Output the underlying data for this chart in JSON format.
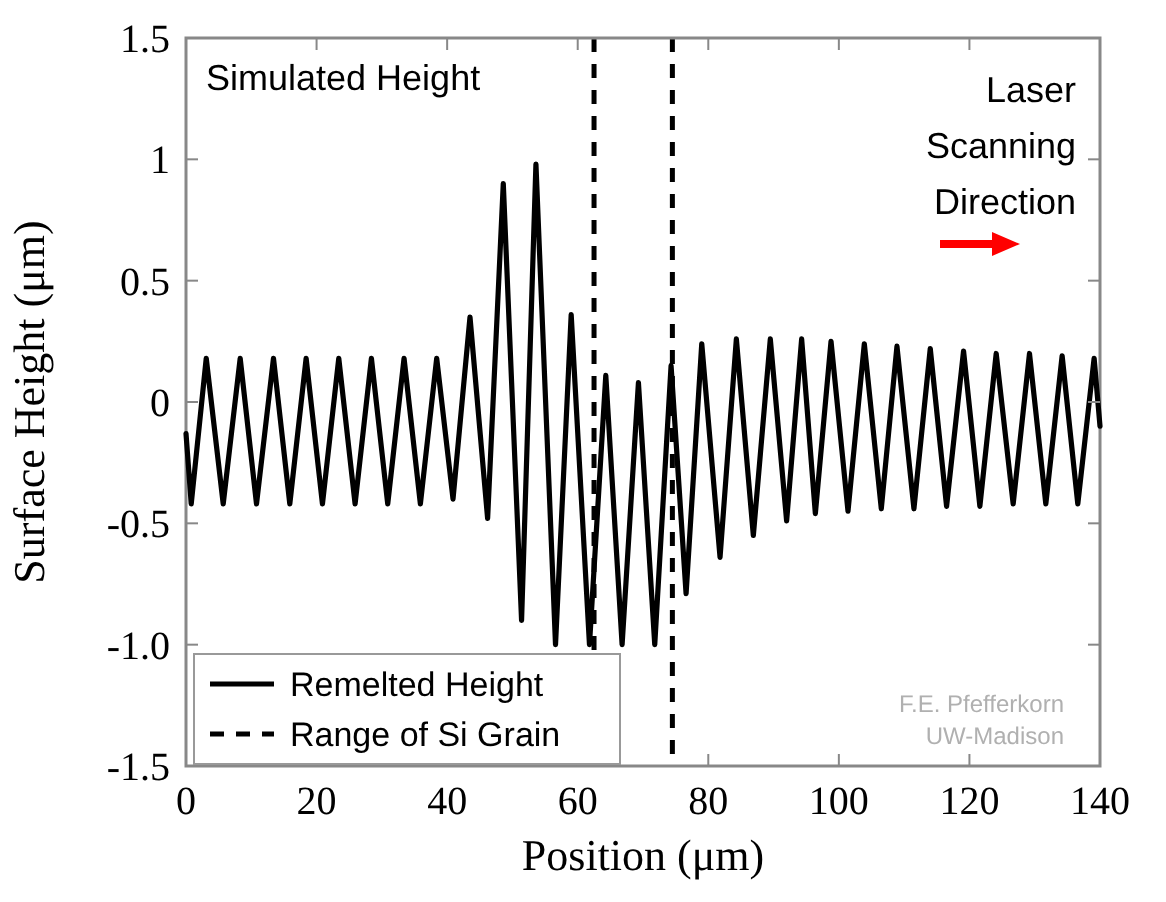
{
  "chart_data": {
    "type": "line",
    "xlabel": "Position (μm)",
    "ylabel": "Surface Height (μm)",
    "xlim": [
      0,
      140
    ],
    "ylim": [
      -1.5,
      1.5
    ],
    "xticks": [
      0,
      20,
      40,
      60,
      80,
      100,
      120,
      140
    ],
    "yticks": [
      {
        "value": -1.5,
        "label": "-1.5"
      },
      {
        "value": -1,
        "label": "-1.0"
      },
      -0.5,
      0,
      0.5,
      1,
      1.5
    ],
    "grid": false,
    "legend": "bottom left",
    "marker": "none",
    "series": [
      {
        "name": "Remelted Height",
        "color": "#000000",
        "line_style": "solid",
        "x": [
          0,
          0.8,
          3.1,
          5.7,
          8.3,
          10.8,
          13.4,
          15.9,
          18.4,
          20.9,
          23.4,
          25.9,
          28.4,
          30.9,
          33.4,
          35.9,
          38.4,
          40.9,
          43.5,
          46.2,
          48.6,
          51.4,
          53.6,
          56.6,
          59.0,
          61.8,
          64.3,
          66.8,
          69.3,
          71.8,
          74.3,
          76.6,
          79.0,
          81.8,
          84.3,
          86.9,
          89.5,
          92.0,
          94.3,
          96.4,
          98.8,
          101.4,
          103.9,
          106.5,
          108.9,
          111.5,
          114.0,
          116.5,
          119.1,
          121.6,
          124.1,
          126.7,
          129.2,
          131.7,
          134.2,
          136.6,
          139.1,
          140
        ],
        "values": [
          -0.13,
          -0.42,
          0.18,
          -0.42,
          0.18,
          -0.42,
          0.18,
          -0.42,
          0.18,
          -0.42,
          0.18,
          -0.42,
          0.18,
          -0.42,
          0.18,
          -0.42,
          0.18,
          -0.4,
          0.35,
          -0.48,
          0.9,
          -0.9,
          0.98,
          -1.0,
          0.36,
          -1.0,
          0.11,
          -1.0,
          0.08,
          -1.0,
          0.15,
          -0.79,
          0.24,
          -0.64,
          0.26,
          -0.55,
          0.26,
          -0.49,
          0.26,
          -0.46,
          0.25,
          -0.45,
          0.24,
          -0.44,
          0.23,
          -0.44,
          0.22,
          -0.43,
          0.21,
          -0.43,
          0.2,
          -0.42,
          0.2,
          -0.42,
          0.19,
          -0.42,
          0.18,
          -0.1
        ]
      }
    ],
    "ref_lines": [
      {
        "axis": "x",
        "value": 62.5,
        "label": "Range of Si Grain",
        "color": "#000000",
        "line_style": "dashed"
      },
      {
        "axis": "x",
        "value": 74.5,
        "color": "#000000",
        "line_style": "dashed"
      }
    ],
    "annotations": [
      "Simulated Height",
      "Laser Scanning Direction",
      "F.E. Pfefferkorn UW-Madison"
    ]
  }
}
